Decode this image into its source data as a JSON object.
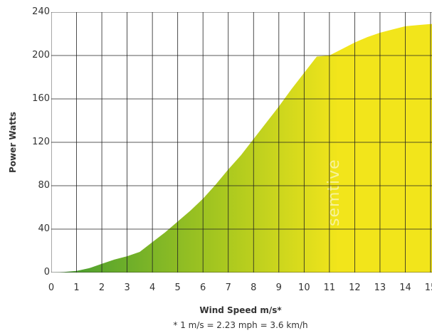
{
  "chart_data": {
    "type": "area",
    "xlabel": "Wind Speed m/s*",
    "ylabel": "Power Watts",
    "footnote": "* 1 m/s = 2.23 mph = 3.6 km/h",
    "watermark": "semtive",
    "xlim": [
      0,
      15
    ],
    "ylim": [
      0,
      240
    ],
    "xticks": [
      0,
      1,
      2,
      3,
      4,
      5,
      6,
      7,
      8,
      9,
      10,
      11,
      12,
      13,
      14,
      15
    ],
    "yticks": [
      0,
      40,
      80,
      120,
      160,
      200,
      240
    ],
    "grid": true,
    "series": [
      {
        "x": [
          0,
          0.5,
          1,
          1.5,
          2,
          2.5,
          3,
          3.5,
          4,
          4.5,
          5,
          5.5,
          6,
          6.5,
          7,
          7.5,
          8,
          8.5,
          9,
          9.5,
          10,
          10.5,
          11,
          11.5,
          12,
          12.5,
          13,
          13.5,
          14,
          14.5,
          15
        ],
        "y": [
          0,
          0.5,
          1.5,
          4,
          8,
          12,
          15,
          19,
          28,
          37,
          47,
          57,
          68,
          81,
          95,
          108,
          123,
          138,
          153,
          169,
          184,
          199,
          200,
          206,
          212,
          217,
          221,
          224,
          227,
          228,
          229
        ]
      }
    ],
    "colors": {
      "area_start": "#3f9a32",
      "area_mid": "#a9c81f",
      "area_end": "#f2e51b",
      "grid": "#222222"
    }
  }
}
